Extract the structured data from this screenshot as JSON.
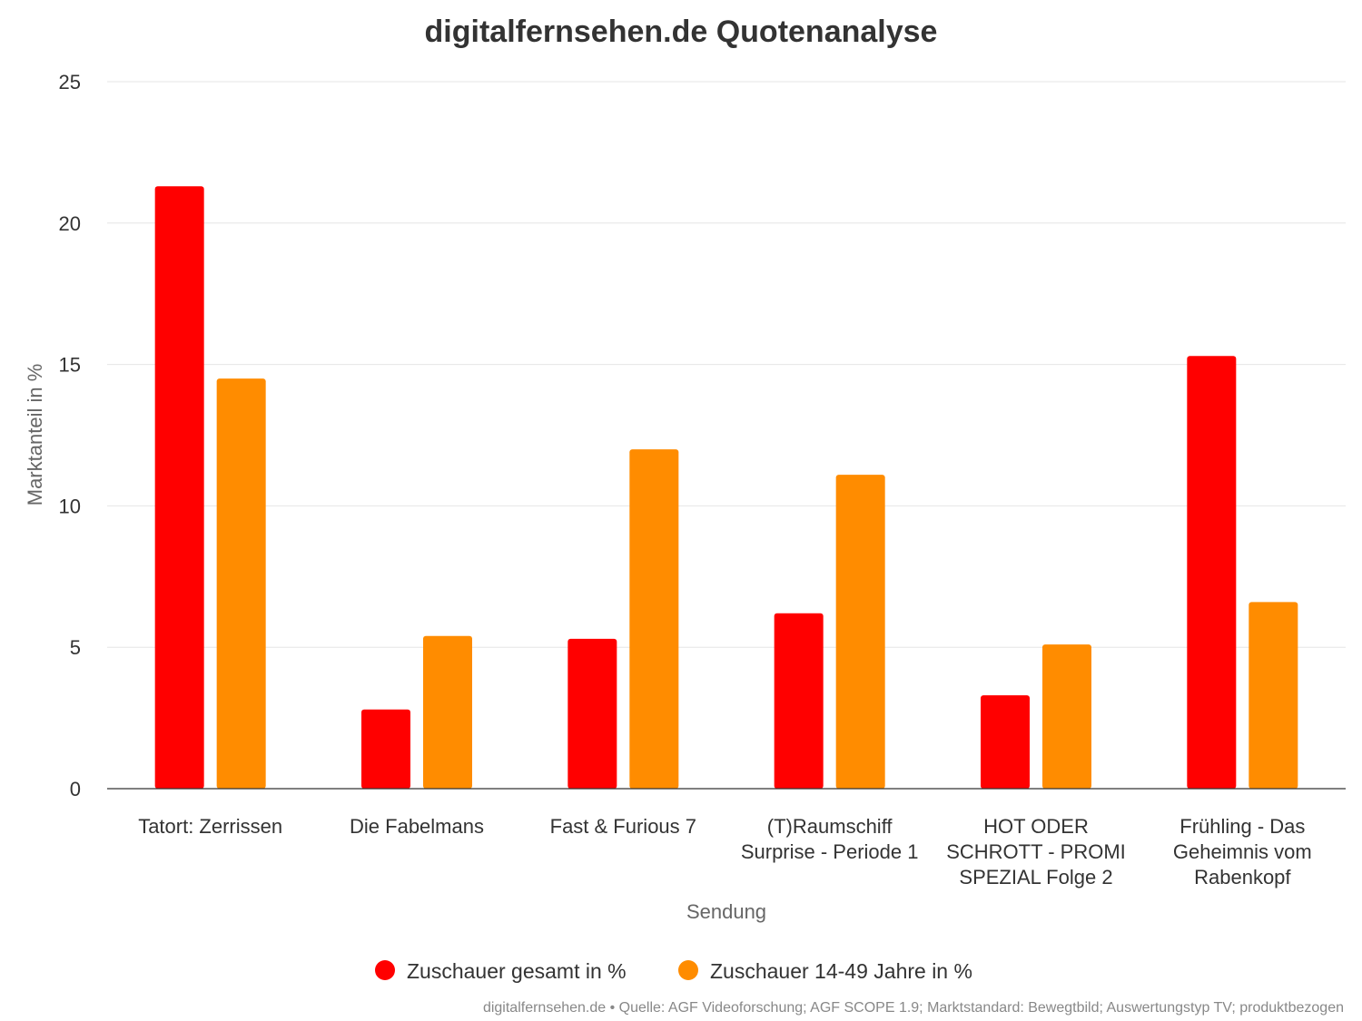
{
  "chart_data": {
    "type": "bar",
    "title": "digitalfernsehen.de Quotenanalyse",
    "xlabel": "Sendung",
    "ylabel": "Marktanteil in %",
    "ylim": [
      0,
      25
    ],
    "yticks": [
      0,
      5,
      10,
      15,
      20,
      25
    ],
    "grid": true,
    "legend_position": "bottom-center",
    "categories": [
      "Tatort: Zerrissen",
      "Die Fabelmans",
      "Fast & Furious 7",
      "(T)Raumschiff Surprise - Periode 1",
      "HOT ODER SCHROTT - PROMI SPEZIAL Folge 2",
      "Frühling - Das Geheimnis vom Rabenkopf"
    ],
    "category_lines": [
      [
        "Tatort: Zerrissen"
      ],
      [
        "Die Fabelmans"
      ],
      [
        "Fast & Furious 7"
      ],
      [
        "(T)Raumschiff",
        "Surprise - Periode 1"
      ],
      [
        "HOT ODER",
        "SCHROTT - PROMI",
        "SPEZIAL Folge 2"
      ],
      [
        "Frühling - Das",
        "Geheimnis vom",
        "Rabenkopf"
      ]
    ],
    "series": [
      {
        "name": "Zuschauer gesamt in %",
        "color": "#ff0000",
        "values": [
          21.3,
          2.8,
          5.3,
          6.2,
          3.3,
          15.3
        ]
      },
      {
        "name": "Zuschauer 14-49 Jahre in %",
        "color": "#ff8c00",
        "values": [
          14.5,
          5.4,
          12.0,
          11.1,
          5.1,
          6.6
        ]
      }
    ]
  },
  "credits": "digitalfernsehen.de • Quelle: AGF Videoforschung; AGF SCOPE 1.9; Marktstandard: Bewegtbild; Auswertungstyp TV; produktbezogen"
}
